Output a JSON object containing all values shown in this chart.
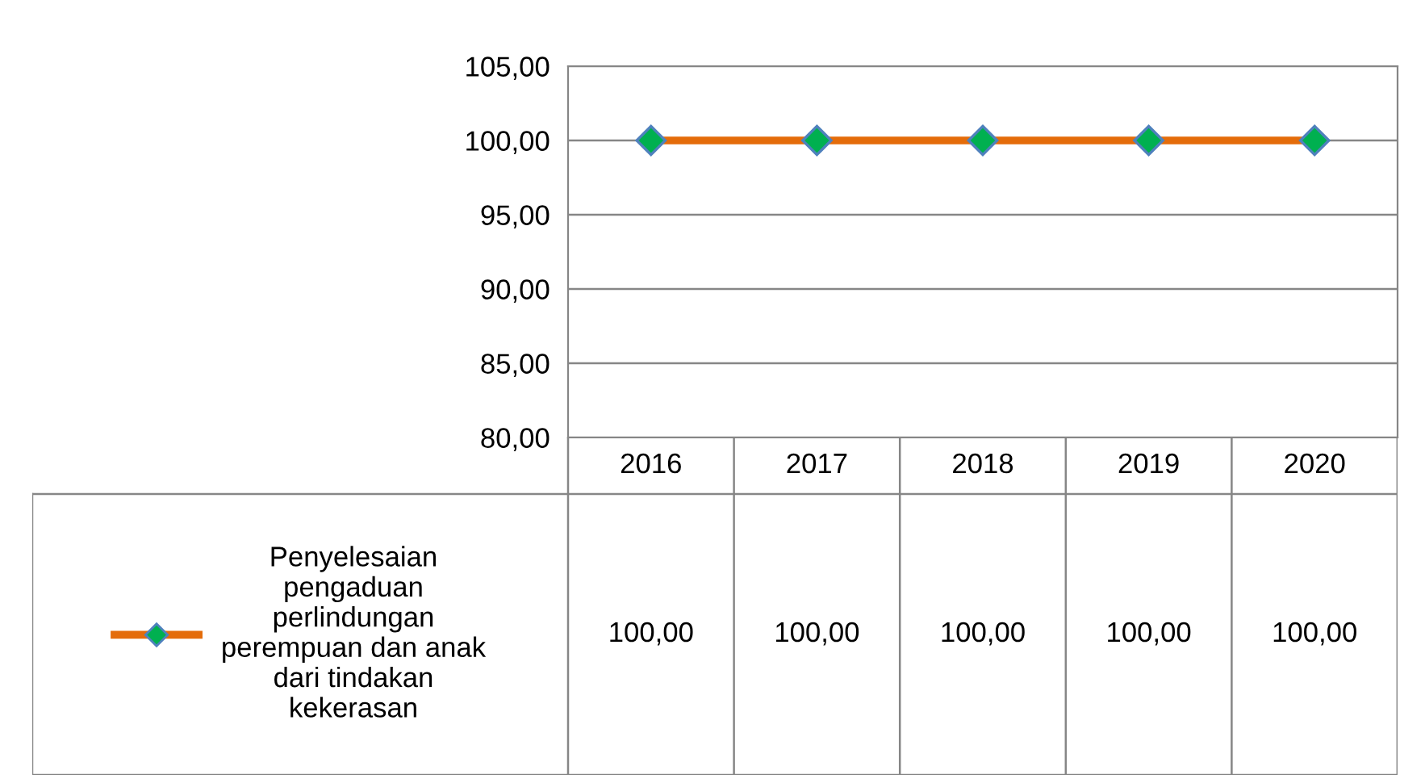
{
  "chart_data": {
    "type": "line",
    "categories": [
      "2016",
      "2017",
      "2018",
      "2019",
      "2020"
    ],
    "series": [
      {
        "name": "Penyelesaian pengaduan perlindungan perempuan dan anak dari tindakan kekerasan",
        "color": "#e46c0a",
        "values": [
          100,
          100,
          100,
          100,
          100
        ],
        "value_labels": [
          "100,00",
          "100,00",
          "100,00",
          "100,00",
          "100,00"
        ]
      }
    ],
    "ylim": [
      80,
      105
    ],
    "yticks": [
      {
        "value": 80,
        "label": "80,00"
      },
      {
        "value": 85,
        "label": "85,00"
      },
      {
        "value": 90,
        "label": "90,00"
      },
      {
        "value": 95,
        "label": "95,00"
      },
      {
        "value": 100,
        "label": "100,00"
      },
      {
        "value": 105,
        "label": "105,00"
      }
    ],
    "grid": "y",
    "legend": "bottom left",
    "marker": "diamond",
    "line_style": "solid"
  }
}
